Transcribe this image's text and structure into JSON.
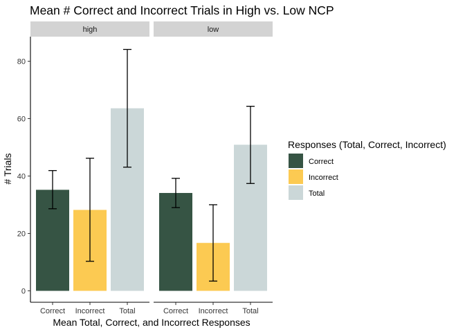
{
  "chart_data": {
    "type": "bar",
    "title": "Mean # Correct and Incorrect Trials in High vs. Low NCP",
    "xlabel": "Mean Total, Correct, and Incorrect Responses",
    "ylabel": "# Trials",
    "ylim": [
      0,
      88
    ],
    "yticks": [
      0,
      20,
      40,
      60,
      80
    ],
    "grid": false,
    "legend_position": "right",
    "legend_title": "Responses (Total, Correct, Incorrect)",
    "categories": [
      "Correct",
      "Incorrect",
      "Total"
    ],
    "series_colors": {
      "Correct": "#365444",
      "Incorrect": "#fcca52",
      "Total": "#cbd7d8"
    },
    "facets": [
      {
        "label": "high",
        "values": [
          35.2,
          28.2,
          63.6
        ],
        "error_low": [
          28.6,
          10.3,
          43.1
        ],
        "error_high": [
          41.9,
          46.2,
          84.1
        ]
      },
      {
        "label": "low",
        "values": [
          34.1,
          16.7,
          50.9
        ],
        "error_low": [
          29.0,
          3.4,
          37.4
        ],
        "error_high": [
          39.2,
          30.0,
          64.3
        ]
      }
    ],
    "legend": [
      {
        "label": "Correct"
      },
      {
        "label": "Incorrect"
      },
      {
        "label": "Total"
      }
    ]
  },
  "theme": {
    "strip_fill": "#d3d3d3",
    "axis_color": "#000000",
    "text_color": "#333333"
  }
}
